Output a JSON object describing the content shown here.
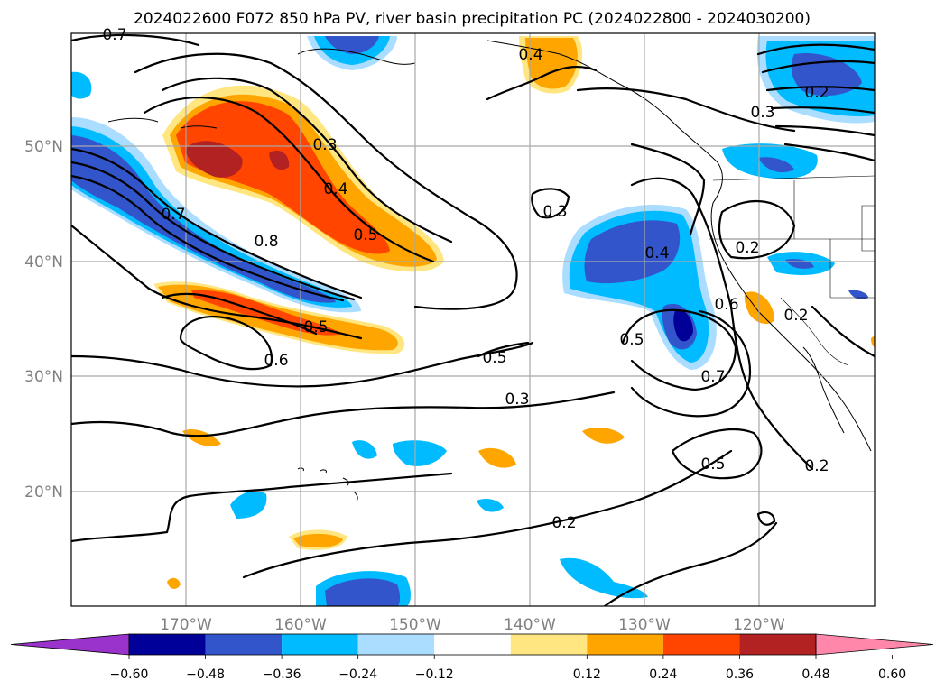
{
  "title": "2024022600 F072 850 hPa PV, river basin precipitation PC (2024022800 - 2024030200)",
  "lon_labels": [
    "170°W",
    "160°W",
    "150°W",
    "140°W",
    "130°W",
    "120°W"
  ],
  "lat_labels": [
    "50°N",
    "40°N",
    "30°N",
    "20°N"
  ],
  "colorbar": {
    "ticks": [
      "−0.60",
      "−0.48",
      "−0.36",
      "−0.24",
      "−0.12",
      "0.12",
      "0.24",
      "0.36",
      "0.48",
      "0.60"
    ],
    "colors": [
      "#9933cc",
      "#000099",
      "#3355cc",
      "#00bbff",
      "#aaddff",
      "#ffffff",
      "#ffe680",
      "#ffa500",
      "#ff4500",
      "#b22222",
      "#ff88aa"
    ]
  },
  "contour_labels": [
    {
      "text": "0.7",
      "name": "contour-label-07-top"
    },
    {
      "text": "0.4",
      "name": "contour-label-04-gulf"
    },
    {
      "text": "0.3",
      "name": "contour-label-03-west"
    },
    {
      "text": "0.4",
      "name": "contour-label-04-west"
    },
    {
      "text": "0.5",
      "name": "contour-label-05-west"
    },
    {
      "text": "0.7",
      "name": "contour-label-07-west"
    },
    {
      "text": "0.8",
      "name": "contour-label-08-west"
    },
    {
      "text": "0.5",
      "name": "contour-label-05-south"
    },
    {
      "text": "0.6",
      "name": "contour-label-06-south"
    },
    {
      "text": "0.5",
      "name": "contour-label-05-mid"
    },
    {
      "text": "0.3",
      "name": "contour-label-03-mid"
    },
    {
      "text": "0.3",
      "name": "contour-label-03-east"
    },
    {
      "text": "0.4",
      "name": "contour-label-04-east"
    },
    {
      "text": "0.5",
      "name": "contour-label-05-low"
    },
    {
      "text": "0.6",
      "name": "contour-label-06-low"
    },
    {
      "text": "0.7",
      "name": "contour-label-07-low"
    },
    {
      "text": "0.5",
      "name": "contour-label-05-se"
    },
    {
      "text": "0.2",
      "name": "contour-label-02-coast"
    },
    {
      "text": "0.2",
      "name": "contour-label-02-ca"
    },
    {
      "text": "0.2",
      "name": "contour-label-02-mex"
    },
    {
      "text": "0.2",
      "name": "contour-label-02-south"
    },
    {
      "text": "0.2",
      "name": "contour-label-02-ne"
    },
    {
      "text": "0.3",
      "name": "contour-label-03-ne"
    }
  ]
}
